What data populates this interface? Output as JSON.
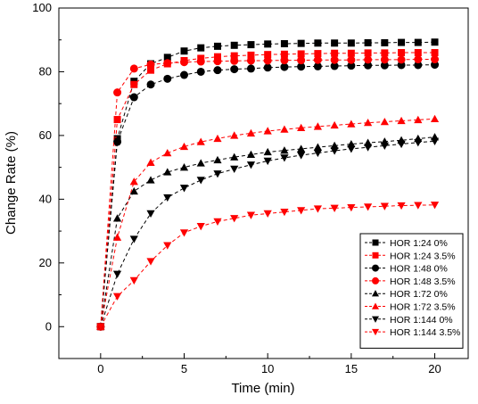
{
  "chart_data": {
    "type": "line",
    "xlabel": "Time (min)",
    "ylabel": "Change Rate (%)",
    "xlim": [
      -2.5,
      22
    ],
    "ylim": [
      -10,
      100
    ],
    "x_ticks": [
      0,
      5,
      10,
      15,
      20
    ],
    "y_ticks": [
      0,
      20,
      40,
      60,
      80,
      100
    ],
    "grid": false,
    "legend_position": "bottom-right",
    "x": [
      0,
      1,
      2,
      3,
      4,
      5,
      6,
      7,
      8,
      9,
      10,
      11,
      12,
      13,
      14,
      15,
      16,
      17,
      18,
      19,
      20
    ],
    "series": [
      {
        "name": "HOR 1:24 0%",
        "color": "#000000",
        "marker": "square",
        "values": [
          0,
          59,
          77,
          82.5,
          84.5,
          86.5,
          87.5,
          88,
          88.3,
          88.5,
          88.7,
          88.8,
          88.9,
          89,
          89,
          89,
          89.1,
          89.1,
          89.2,
          89.2,
          89.3
        ]
      },
      {
        "name": "HOR 1:24 3.5%",
        "color": "#ff0000",
        "marker": "square",
        "values": [
          0,
          65,
          76,
          80.5,
          82.5,
          83.5,
          84.2,
          84.7,
          85,
          85.2,
          85.4,
          85.5,
          85.6,
          85.7,
          85.8,
          85.8,
          85.9,
          85.9,
          86,
          86,
          86
        ]
      },
      {
        "name": "HOR 1:48 0%",
        "color": "#000000",
        "marker": "circle",
        "values": [
          0,
          58,
          72,
          76,
          77.8,
          79,
          80,
          80.5,
          80.8,
          81,
          81.3,
          81.5,
          81.6,
          81.7,
          81.8,
          81.9,
          82,
          82,
          82.1,
          82.1,
          82.2
        ]
      },
      {
        "name": "HOR 1:48 3.5%",
        "color": "#ff0000",
        "marker": "circle",
        "values": [
          0,
          73.5,
          81,
          82.3,
          82.7,
          83,
          83.2,
          83.3,
          83.4,
          83.5,
          83.5,
          83.6,
          83.6,
          83.7,
          83.7,
          83.7,
          83.8,
          83.8,
          83.8,
          83.9,
          83.9
        ]
      },
      {
        "name": "HOR 1:72 0%",
        "color": "#000000",
        "marker": "triangle-up",
        "values": [
          0,
          34,
          42.5,
          46,
          48.5,
          50,
          51.3,
          52.3,
          53.2,
          54,
          54.8,
          55.3,
          55.8,
          56.3,
          56.8,
          57.3,
          57.7,
          58.1,
          58.5,
          59,
          59.5
        ]
      },
      {
        "name": "HOR 1:72 3.5%",
        "color": "#ff0000",
        "marker": "triangle-up",
        "values": [
          0,
          28,
          45.5,
          51.5,
          54.5,
          56.5,
          58,
          59,
          60,
          60.7,
          61.4,
          61.9,
          62.4,
          62.8,
          63.2,
          63.6,
          64,
          64.3,
          64.6,
          64.9,
          65.2
        ]
      },
      {
        "name": "HOR 1:144 0%",
        "color": "#000000",
        "marker": "triangle-down",
        "values": [
          0,
          16.5,
          27.5,
          35.5,
          40.5,
          43.5,
          46,
          48,
          49.5,
          50.8,
          52,
          53,
          53.8,
          54.5,
          55.2,
          55.8,
          56.3,
          56.8,
          57.3,
          57.8,
          58.2
        ]
      },
      {
        "name": "HOR 1:144 3.5%",
        "color": "#ff0000",
        "marker": "triangle-down",
        "values": [
          0,
          9.5,
          14.5,
          20.5,
          25.5,
          29.5,
          31.5,
          33,
          34,
          35,
          35.5,
          36,
          36.5,
          37,
          37.2,
          37.4,
          37.6,
          37.8,
          38,
          38.1,
          38.2
        ]
      }
    ]
  }
}
